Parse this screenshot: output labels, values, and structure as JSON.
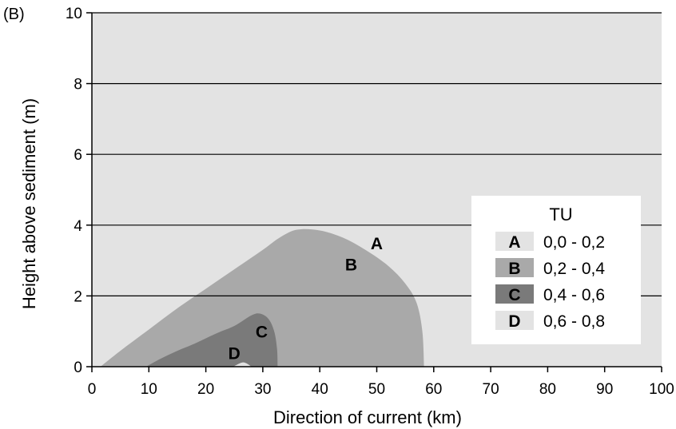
{
  "chart_data": {
    "type": "area",
    "panel_label": "(B)",
    "xlabel": "Direction of current (km)",
    "ylabel": "Height above sediment (m)",
    "xlim": [
      0,
      100
    ],
    "ylim": [
      0,
      10
    ],
    "xticks": [
      0,
      10,
      20,
      30,
      40,
      50,
      60,
      70,
      80,
      90,
      100
    ],
    "yticks": [
      0,
      2,
      4,
      6,
      8,
      10
    ],
    "grid": "horizontal",
    "background_color": "#e3e3e3",
    "legend": {
      "title": "TU",
      "placement": "right",
      "entries": [
        {
          "letter": "A",
          "range": "0,0 - 0,2",
          "color": "#e3e3e3"
        },
        {
          "letter": "B",
          "range": "0,2 - 0,4",
          "color": "#a9a9a9"
        },
        {
          "letter": "C",
          "range": "0,4 - 0,6",
          "color": "#7a7a7a"
        },
        {
          "letter": "D",
          "range": "0,6 - 0,8",
          "color": "#e3e3e3"
        }
      ]
    },
    "regions": [
      {
        "name": "B",
        "color": "#a9a9a9",
        "boundary": [
          [
            1.5,
            0
          ],
          [
            5,
            0.45
          ],
          [
            10,
            1.05
          ],
          [
            15,
            1.65
          ],
          [
            20,
            2.2
          ],
          [
            25,
            2.75
          ],
          [
            30,
            3.3
          ],
          [
            33,
            3.65
          ],
          [
            36,
            3.87
          ],
          [
            40,
            3.85
          ],
          [
            44,
            3.65
          ],
          [
            48,
            3.3
          ],
          [
            52,
            2.85
          ],
          [
            55,
            2.35
          ],
          [
            57,
            1.8
          ],
          [
            58,
            1.0
          ],
          [
            58.3,
            0
          ]
        ]
      },
      {
        "name": "C",
        "color": "#7a7a7a",
        "boundary": [
          [
            9.5,
            0
          ],
          [
            12,
            0.22
          ],
          [
            15,
            0.45
          ],
          [
            18,
            0.65
          ],
          [
            22,
            0.95
          ],
          [
            25,
            1.15
          ],
          [
            28,
            1.45
          ],
          [
            29.5,
            1.5
          ],
          [
            31,
            1.35
          ],
          [
            32,
            1.0
          ],
          [
            32.5,
            0.5
          ],
          [
            32.6,
            0
          ]
        ]
      },
      {
        "name": "D",
        "color": "#e3e3e3",
        "boundary": [
          [
            24.8,
            0
          ],
          [
            25.5,
            0.06
          ],
          [
            26.5,
            0.12
          ],
          [
            27.3,
            0.08
          ],
          [
            28,
            0
          ]
        ]
      }
    ],
    "annotations": [
      {
        "text": "A",
        "x": 50,
        "y": 3.5
      },
      {
        "text": "B",
        "x": 45.5,
        "y": 2.9
      },
      {
        "text": "C",
        "x": 29.8,
        "y": 1.0
      },
      {
        "text": "D",
        "x": 25,
        "y": 0.4
      }
    ]
  }
}
